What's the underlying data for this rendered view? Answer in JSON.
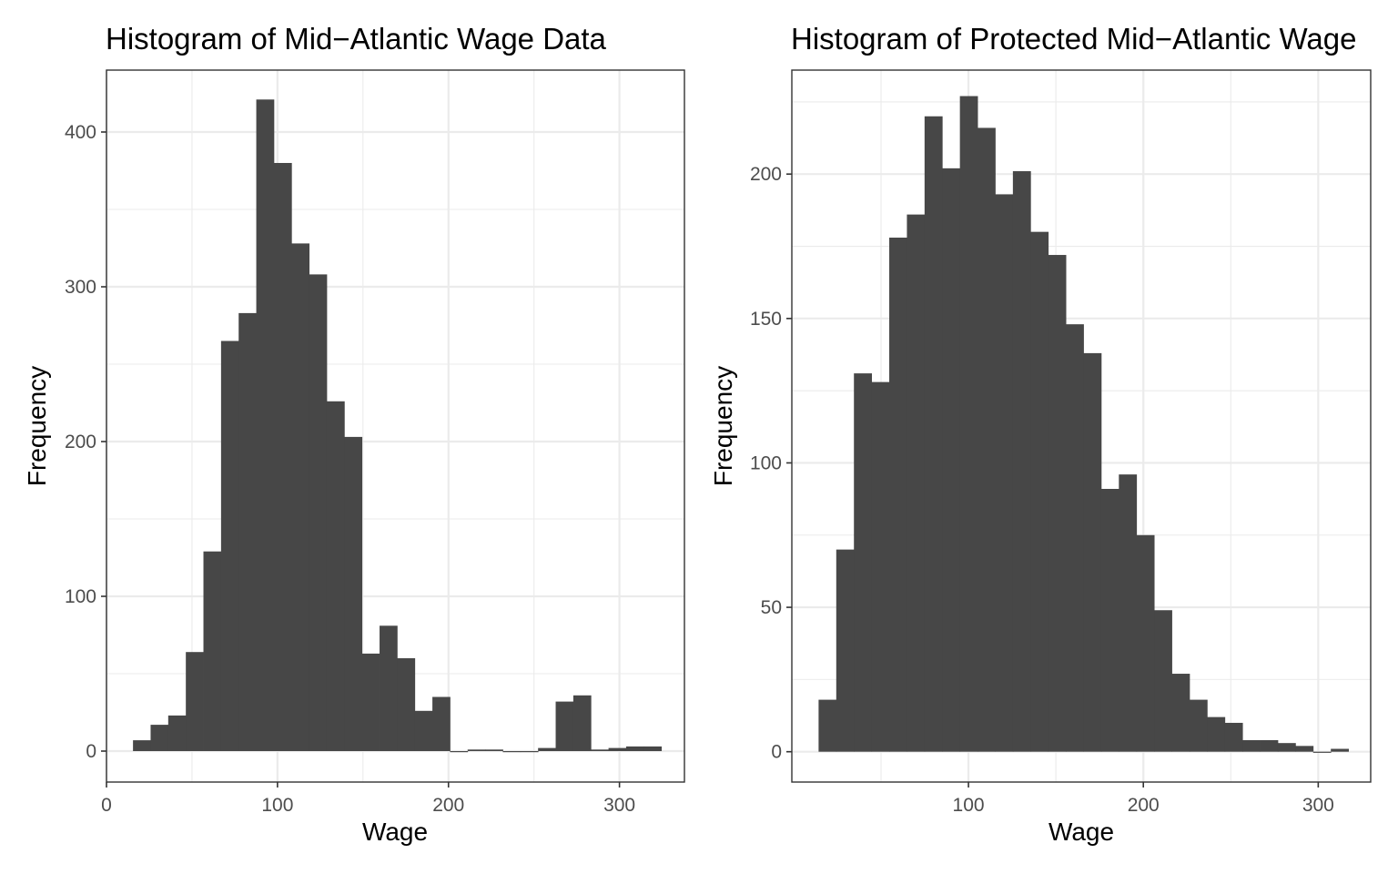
{
  "chart_data": [
    {
      "type": "bar",
      "title": "Histogram of Mid−Atlantic Wage Data",
      "xlabel": "Wage",
      "ylabel": "Frequency",
      "xlim": [
        0,
        338
      ],
      "ylim": [
        -20,
        440
      ],
      "x_ticks": [
        0,
        100,
        200,
        300
      ],
      "x_tick_labels": [
        "0",
        "100",
        "200",
        "300"
      ],
      "y_ticks": [
        0,
        100,
        200,
        300,
        400
      ],
      "y_tick_labels": [
        "0",
        "100",
        "200",
        "300",
        "400"
      ],
      "grid": true,
      "bin_width": 10.3,
      "bins": [
        {
          "x0": 15.5,
          "x1": 25.8,
          "count": 7
        },
        {
          "x0": 25.8,
          "x1": 36.1,
          "count": 17
        },
        {
          "x0": 36.1,
          "x1": 46.4,
          "count": 23
        },
        {
          "x0": 46.4,
          "x1": 56.7,
          "count": 64
        },
        {
          "x0": 56.7,
          "x1": 67.0,
          "count": 129
        },
        {
          "x0": 67.0,
          "x1": 77.3,
          "count": 265
        },
        {
          "x0": 77.3,
          "x1": 87.6,
          "count": 283
        },
        {
          "x0": 87.6,
          "x1": 97.9,
          "count": 421
        },
        {
          "x0": 97.9,
          "x1": 108.2,
          "count": 380
        },
        {
          "x0": 108.2,
          "x1": 118.5,
          "count": 328
        },
        {
          "x0": 118.5,
          "x1": 128.8,
          "count": 308
        },
        {
          "x0": 128.8,
          "x1": 139.1,
          "count": 226
        },
        {
          "x0": 139.1,
          "x1": 149.4,
          "count": 203
        },
        {
          "x0": 149.4,
          "x1": 159.7,
          "count": 63
        },
        {
          "x0": 159.7,
          "x1": 170.0,
          "count": 81
        },
        {
          "x0": 170.0,
          "x1": 180.3,
          "count": 60
        },
        {
          "x0": 180.3,
          "x1": 190.6,
          "count": 26
        },
        {
          "x0": 190.6,
          "x1": 200.9,
          "count": 35
        },
        {
          "x0": 200.9,
          "x1": 211.2,
          "count": 0
        },
        {
          "x0": 211.2,
          "x1": 221.5,
          "count": 1
        },
        {
          "x0": 221.5,
          "x1": 231.8,
          "count": 1
        },
        {
          "x0": 231.8,
          "x1": 242.1,
          "count": 0
        },
        {
          "x0": 242.1,
          "x1": 252.4,
          "count": 0
        },
        {
          "x0": 252.4,
          "x1": 262.7,
          "count": 2
        },
        {
          "x0": 262.7,
          "x1": 273.0,
          "count": 32
        },
        {
          "x0": 273.0,
          "x1": 283.3,
          "count": 36
        },
        {
          "x0": 283.3,
          "x1": 293.6,
          "count": 1
        },
        {
          "x0": 293.6,
          "x1": 303.9,
          "count": 2
        },
        {
          "x0": 303.9,
          "x1": 314.2,
          "count": 3
        },
        {
          "x0": 314.2,
          "x1": 324.5,
          "count": 3
        }
      ]
    },
    {
      "type": "bar",
      "title": "Histogram of Protected Mid−Atlantic Wage",
      "xlabel": "Wage",
      "ylabel": "Frequency",
      "xlim": [
        -1,
        330
      ],
      "ylim": [
        -10.5,
        236
      ],
      "x_ticks": [
        100,
        200,
        300
      ],
      "x_tick_labels": [
        "100",
        "200",
        "300"
      ],
      "y_ticks": [
        0,
        50,
        100,
        150,
        200
      ],
      "y_tick_labels": [
        "0",
        "50",
        "100",
        "150",
        "200"
      ],
      "grid": true,
      "bin_width": 10.1,
      "bins": [
        {
          "x0": 14.3,
          "x1": 24.4,
          "count": 18
        },
        {
          "x0": 24.4,
          "x1": 34.5,
          "count": 70
        },
        {
          "x0": 34.5,
          "x1": 44.6,
          "count": 131
        },
        {
          "x0": 44.6,
          "x1": 54.7,
          "count": 128
        },
        {
          "x0": 54.7,
          "x1": 64.8,
          "count": 178
        },
        {
          "x0": 64.8,
          "x1": 74.9,
          "count": 186
        },
        {
          "x0": 74.9,
          "x1": 85.0,
          "count": 220
        },
        {
          "x0": 85.0,
          "x1": 95.1,
          "count": 202
        },
        {
          "x0": 95.1,
          "x1": 105.2,
          "count": 227
        },
        {
          "x0": 105.2,
          "x1": 115.3,
          "count": 216
        },
        {
          "x0": 115.3,
          "x1": 125.4,
          "count": 193
        },
        {
          "x0": 125.4,
          "x1": 135.5,
          "count": 201
        },
        {
          "x0": 135.5,
          "x1": 145.6,
          "count": 180
        },
        {
          "x0": 145.6,
          "x1": 155.7,
          "count": 172
        },
        {
          "x0": 155.7,
          "x1": 165.8,
          "count": 148
        },
        {
          "x0": 165.8,
          "x1": 175.9,
          "count": 138
        },
        {
          "x0": 175.9,
          "x1": 186.0,
          "count": 91
        },
        {
          "x0": 186.0,
          "x1": 196.1,
          "count": 96
        },
        {
          "x0": 196.1,
          "x1": 206.2,
          "count": 75
        },
        {
          "x0": 206.2,
          "x1": 216.3,
          "count": 49
        },
        {
          "x0": 216.3,
          "x1": 226.4,
          "count": 27
        },
        {
          "x0": 226.4,
          "x1": 236.5,
          "count": 18
        },
        {
          "x0": 236.5,
          "x1": 246.6,
          "count": 12
        },
        {
          "x0": 246.6,
          "x1": 256.7,
          "count": 10
        },
        {
          "x0": 256.7,
          "x1": 266.8,
          "count": 4
        },
        {
          "x0": 266.8,
          "x1": 276.9,
          "count": 4
        },
        {
          "x0": 276.9,
          "x1": 287.0,
          "count": 3
        },
        {
          "x0": 287.0,
          "x1": 297.1,
          "count": 2
        },
        {
          "x0": 297.1,
          "x1": 307.2,
          "count": 0
        },
        {
          "x0": 307.2,
          "x1": 317.3,
          "count": 1
        }
      ]
    }
  ]
}
